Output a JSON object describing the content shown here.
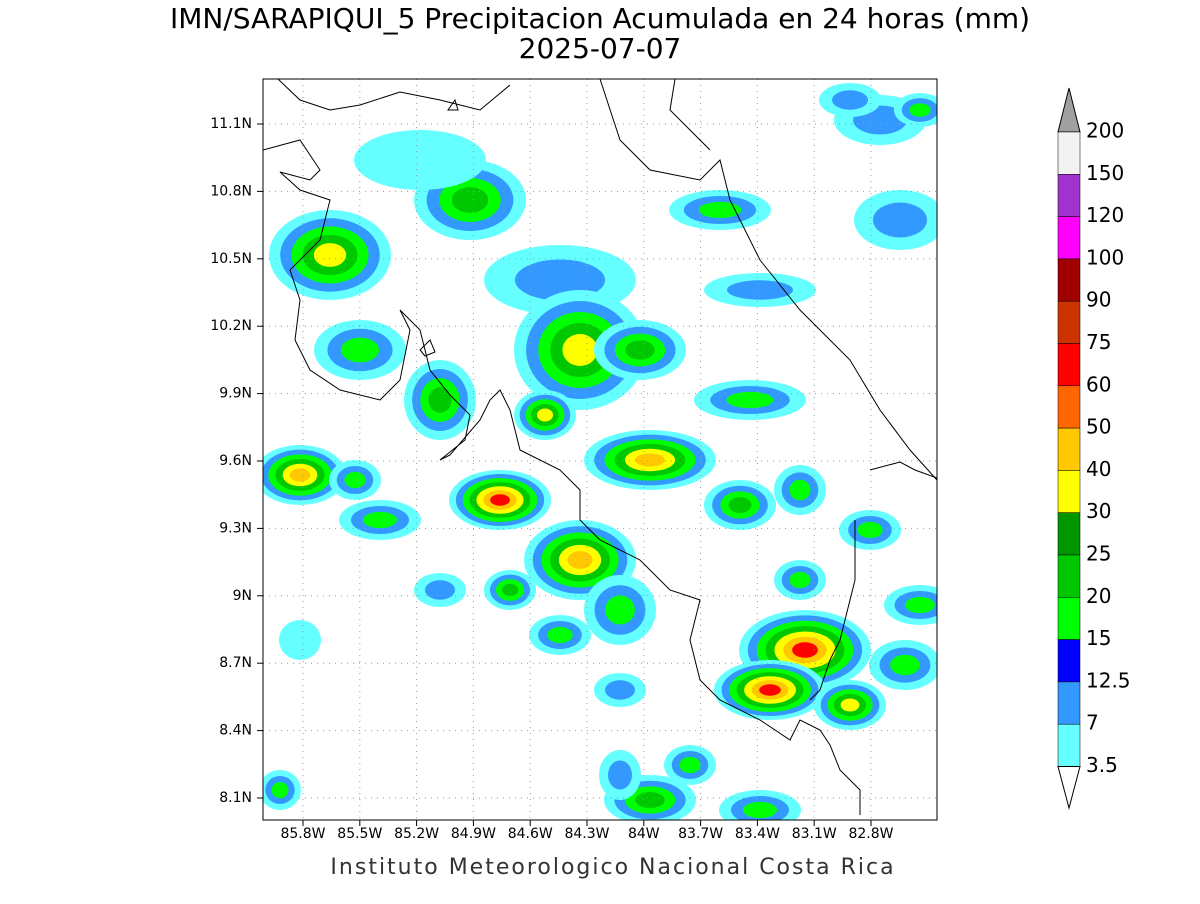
{
  "header": {
    "title": "IMN/SARAPIQUI_5 Precipitacion Acumulada en 24 horas (mm)",
    "date": "2025-07-07"
  },
  "map": {
    "lat_labels": [
      "11.1N",
      "10.8N",
      "10.5N",
      "10.2N",
      "9.9N",
      "9.6N",
      "9.3N",
      "9N",
      "8.7N",
      "8.4N",
      "8.1N"
    ],
    "lon_labels": [
      "85.8W",
      "85.5W",
      "85.2W",
      "84.9W",
      "84.6W",
      "84.3W",
      "84W",
      "83.7W",
      "83.4W",
      "83.1W",
      "82.8W"
    ]
  },
  "colorbar": {
    "labels": [
      200,
      150,
      120,
      100,
      90,
      75,
      60,
      50,
      40,
      30,
      25,
      20,
      15,
      12.5,
      7,
      3.5
    ],
    "band_colors": [
      "#f2f2f2",
      "#a033cc",
      "#ff00ff",
      "#a00000",
      "#cc3300",
      "#ff0000",
      "#ff6600",
      "#ffc800",
      "#ffff00",
      "#009600",
      "#00c800",
      "#00ff00",
      "#0000ff",
      "#3399ff",
      "#66ffff"
    ],
    "over_color": "#a0a0a0",
    "under_color": "#ffffff"
  },
  "footer": "Instituto Meteorologico Nacional Costa Rica"
}
